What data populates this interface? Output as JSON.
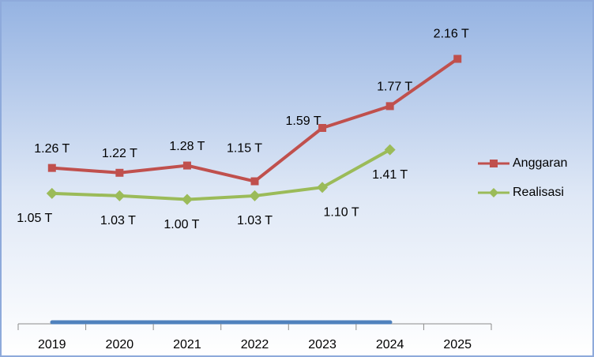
{
  "chart_data": {
    "type": "line",
    "categories": [
      "2019",
      "2020",
      "2021",
      "2022",
      "2023",
      "2024",
      "2025"
    ],
    "series": [
      {
        "name": "Anggaran",
        "color": "#c0504d",
        "values": [
          1.26,
          1.22,
          1.28,
          1.15,
          1.59,
          1.77,
          2.16
        ],
        "value_labels": [
          "1.26 T",
          "1.22 T",
          "1.28 T",
          "1.15 T",
          "1.59 T",
          "1.77 T",
          "2.16 T"
        ]
      },
      {
        "name": "Realisasi",
        "color": "#9bbb59",
        "values": [
          1.05,
          1.03,
          1.0,
          1.03,
          1.1,
          1.41,
          null
        ],
        "value_labels": [
          "1.05 T",
          "1.03 T",
          "1.00 T",
          "1.03 T",
          "1.10 T",
          "1.41 T",
          null
        ]
      }
    ],
    "ylim": [
      0,
      2.6
    ],
    "legend": "right"
  }
}
